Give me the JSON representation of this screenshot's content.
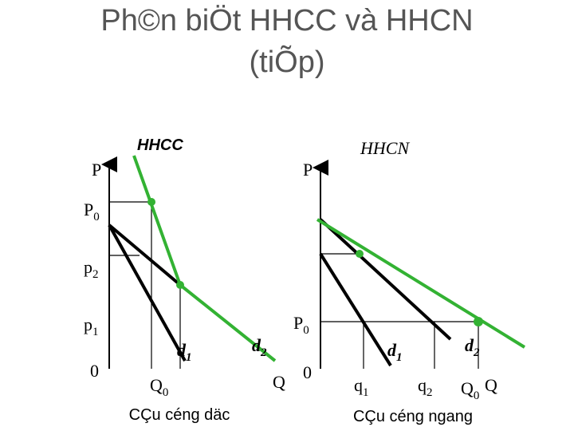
{
  "title": [
    "Ph©n biÖt HHCC và HHCN",
    "(tiÕp)"
  ],
  "left": {
    "heading": "HHCC",
    "axis_p": "P",
    "p0": {
      "main": "P",
      "sub": "0"
    },
    "p2": {
      "main": "p",
      "sub": "2"
    },
    "p1": {
      "main": "p",
      "sub": "1"
    },
    "origin": "0",
    "d1": {
      "main": "d",
      "sub": "1"
    },
    "d2": {
      "main": "d",
      "sub": "2"
    },
    "q0": {
      "main": "Q",
      "sub": "0"
    },
    "axis_q": "Q",
    "caption": "CÇu céng däc"
  },
  "right": {
    "heading": "HHCN",
    "axis_p": "P",
    "p0": {
      "main": "P",
      "sub": "0"
    },
    "origin": "0",
    "d1": {
      "main": "d",
      "sub": "1"
    },
    "d2": {
      "main": "d",
      "sub": "2"
    },
    "q1": {
      "main": "q",
      "sub": "1"
    },
    "q2": {
      "main": "q",
      "sub": "2"
    },
    "q0": {
      "main": "Q",
      "sub": "0"
    },
    "axis_q": "Q",
    "caption": "CÇu céng ngang"
  }
}
